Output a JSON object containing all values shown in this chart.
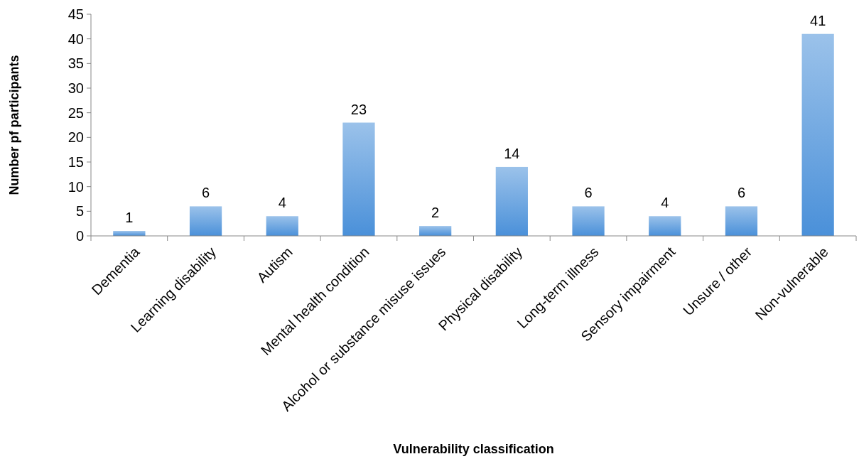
{
  "chart_data": {
    "type": "bar",
    "xlabel": "Vulnerability classification",
    "ylabel": "Number pf participants",
    "categories": [
      "Dementia",
      "Learning disability",
      "Autism",
      "Mental health condition",
      "Alcohol or substance misuse issues",
      "Physical disability",
      "Long-term illness",
      "Sensory impairment",
      "Unsure / other",
      "Non-vulnerable"
    ],
    "values": [
      1,
      6,
      4,
      23,
      2,
      14,
      6,
      4,
      6,
      41
    ],
    "color": "#4a90d9",
    "ylim": [
      0,
      45
    ],
    "yticks": [
      0,
      5,
      10,
      15,
      20,
      25,
      30,
      35,
      40,
      45
    ],
    "data_labels": true,
    "grid": false
  }
}
